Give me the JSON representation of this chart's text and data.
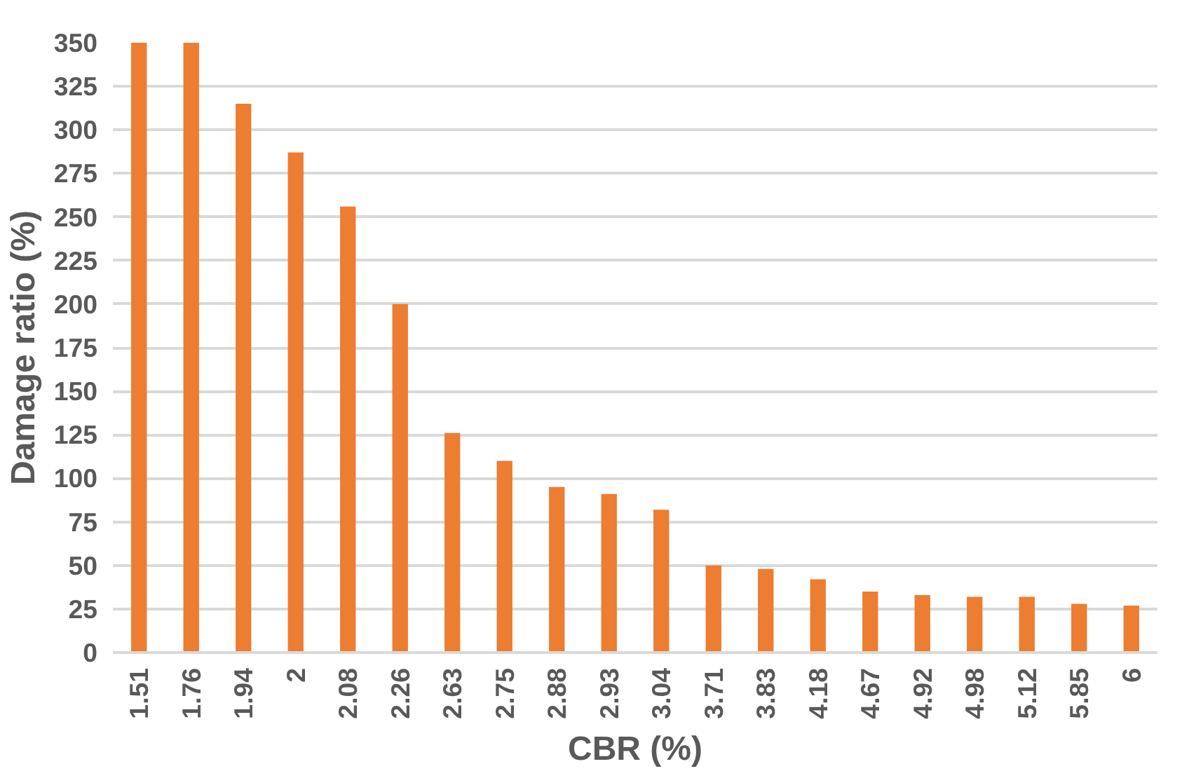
{
  "chart_data": {
    "type": "bar",
    "xlabel": "CBR (%)",
    "ylabel": "Damage ratio (%)",
    "categories": [
      "1.51",
      "1.76",
      "1.94",
      "2",
      "2.08",
      "2.26",
      "2.63",
      "2.75",
      "2.88",
      "2.93",
      "3.04",
      "3.71",
      "3.83",
      "4.18",
      "4.67",
      "4.92",
      "4.98",
      "5.12",
      "5.85",
      "6"
    ],
    "values": [
      350,
      350,
      315,
      287,
      256,
      200,
      126,
      110,
      95,
      91,
      82,
      50,
      48,
      42,
      35,
      33,
      32,
      32,
      28,
      27
    ],
    "color": "#ed7d31",
    "ylim": [
      0,
      350
    ],
    "yticks": [
      0,
      25,
      50,
      75,
      100,
      125,
      150,
      175,
      200,
      225,
      250,
      275,
      300,
      325,
      350
    ],
    "grid": "y"
  }
}
